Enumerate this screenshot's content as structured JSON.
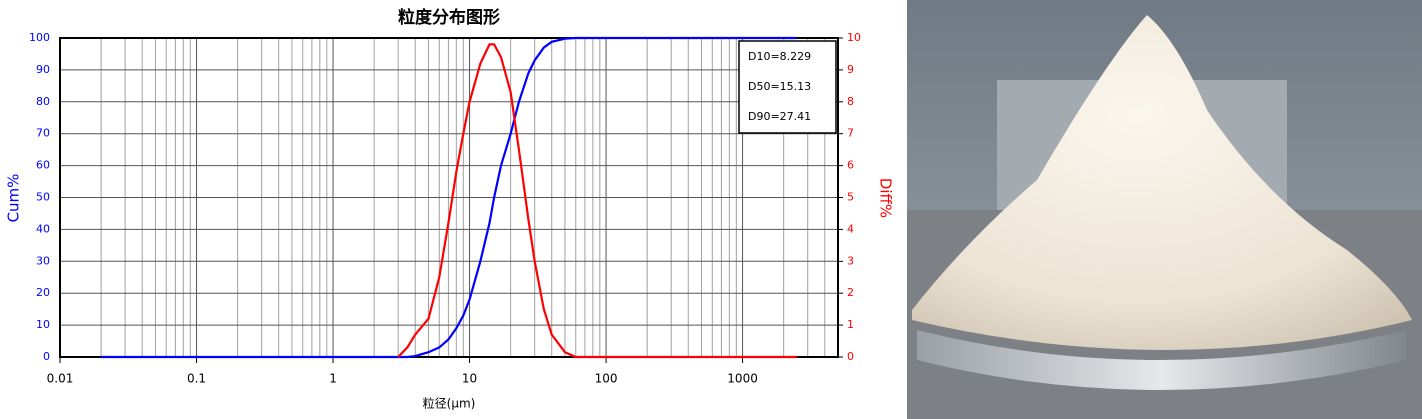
{
  "chart_data": {
    "type": "line",
    "title": "粒度分布图形",
    "x_label": "粒径(μm)",
    "y_label": "Cum%",
    "y2_label": "Diff%",
    "x_log": true,
    "grid": true,
    "minor_grid": true,
    "x": [
      0.02,
      0.5,
      2,
      3,
      3.5,
      4,
      5,
      6,
      7,
      8,
      9,
      10,
      12,
      14,
      15.13,
      17,
      20,
      23,
      27,
      30,
      35,
      40,
      50,
      60,
      100,
      500,
      2500
    ],
    "series": [
      {
        "name": "Cum%",
        "color": "#0000ff",
        "values": [
          0,
          0,
          0,
          0,
          0,
          0.3,
          1.5,
          3,
          5.5,
          9,
          13,
          18,
          30,
          42,
          50,
          60,
          70,
          80,
          89,
          93,
          97,
          98.8,
          99.8,
          100,
          100,
          100,
          100
        ]
      },
      {
        "name": "Diff%",
        "color": "#ff0000",
        "axis": "y2",
        "values": [
          null,
          null,
          null,
          0,
          0.3,
          0.7,
          1.2,
          2.5,
          4.2,
          5.8,
          7.0,
          8.0,
          9.2,
          9.8,
          9.8,
          9.4,
          8.3,
          6.5,
          4.3,
          3.0,
          1.5,
          0.7,
          0.15,
          0,
          0,
          0,
          0
        ]
      }
    ],
    "xlim": [
      0.01,
      5000
    ],
    "xticks": [
      0.01,
      0.1,
      1,
      10,
      100,
      1000
    ],
    "ylim": [
      0,
      100
    ],
    "yticks": [
      0,
      10,
      20,
      30,
      40,
      50,
      60,
      70,
      80,
      90,
      100
    ],
    "y2lim": [
      0,
      10
    ],
    "y2ticks": [
      0,
      1,
      2,
      3,
      4,
      5,
      6,
      7,
      8,
      9,
      10
    ],
    "annotations": [
      "D10=8.229",
      "D50=15.13",
      "D90=27.41"
    ]
  }
}
